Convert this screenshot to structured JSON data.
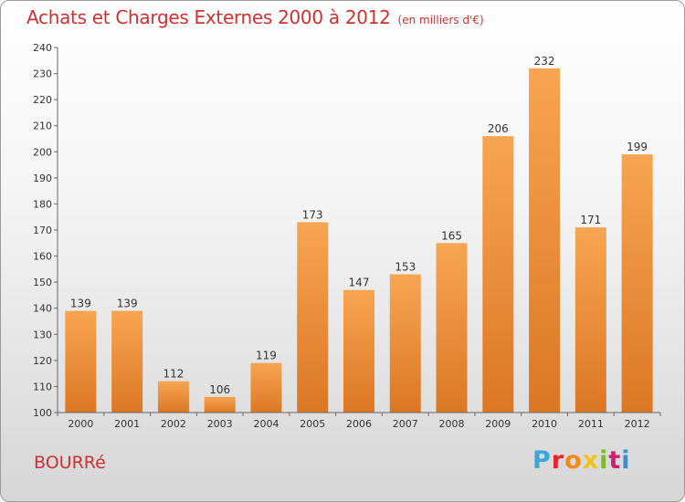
{
  "title": "Achats et Charges Externes 2000 à 2012",
  "subtitle": "(en milliers d'€)",
  "commune": "BOURRé",
  "logo": {
    "text": "Proxiti",
    "letter_colors": [
      "#3aa7d8",
      "#e8262a",
      "#f08a1c",
      "#f3c21a",
      "#7dbb29",
      "#d21e70",
      "#3a8fd2"
    ]
  },
  "colors": {
    "bar_light": "#f7a552",
    "bar_dark": "#dc7723",
    "title": "#d0302e"
  },
  "chart_data": {
    "type": "bar",
    "title": "Achats et Charges Externes 2000 à 2012",
    "categories": [
      "2000",
      "2001",
      "2002",
      "2003",
      "2004",
      "2005",
      "2006",
      "2007",
      "2008",
      "2009",
      "2010",
      "2011",
      "2012"
    ],
    "values": [
      139,
      139,
      112,
      106,
      119,
      173,
      147,
      153,
      165,
      206,
      232,
      171,
      199
    ],
    "ylim": [
      100,
      240
    ],
    "yticks": [
      100,
      110,
      120,
      130,
      140,
      150,
      160,
      170,
      180,
      190,
      200,
      210,
      220,
      230,
      240
    ],
    "grid": false,
    "legend": "none",
    "xlabel": "",
    "ylabel": ""
  }
}
